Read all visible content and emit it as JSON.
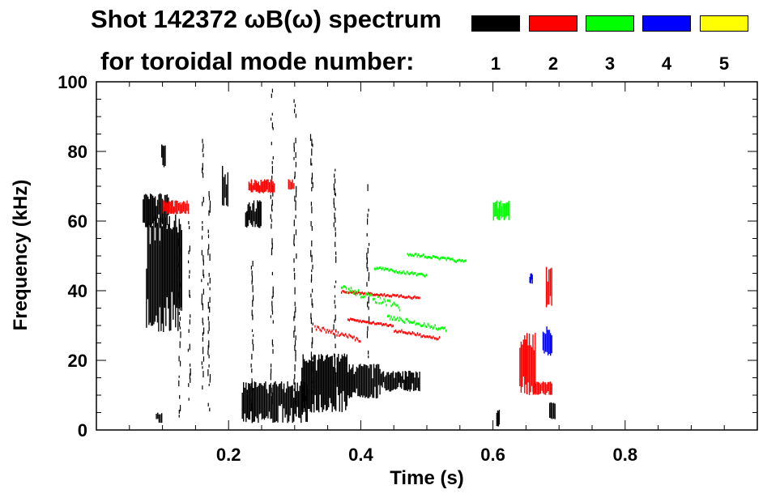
{
  "chart_data": {
    "type": "scatter",
    "title": "Shot 142372 ωB(ω) spectrum",
    "subtitle": "for toroidal mode number:",
    "xlabel": "Time (s)",
    "ylabel": "Frequency (kHz)",
    "xlim": [
      0.0,
      1.0
    ],
    "ylim": [
      0,
      100
    ],
    "xticks": [
      0.2,
      0.4,
      0.6,
      0.8
    ],
    "xtick_labels": [
      "0.2",
      "0.4",
      "0.6",
      "0.8"
    ],
    "yticks": [
      0,
      20,
      40,
      60,
      80,
      100
    ],
    "ytick_labels": [
      "0",
      "20",
      "40",
      "60",
      "80",
      "100"
    ],
    "legend": [
      {
        "label": "1",
        "color": "#000000"
      },
      {
        "label": "2",
        "color": "#ff0000"
      },
      {
        "label": "3",
        "color": "#00ff00"
      },
      {
        "label": "4",
        "color": "#0000ff"
      },
      {
        "label": "5",
        "color": "#ffff00"
      }
    ],
    "series": [
      {
        "name": "1",
        "color": "#000000",
        "blobs": [
          {
            "t": [
              0.075,
              0.13
            ],
            "f": [
              28,
              62
            ]
          },
          {
            "t": [
              0.07,
              0.11
            ],
            "f": [
              58,
              68
            ]
          },
          {
            "t": [
              0.098,
              0.105
            ],
            "f": [
              75,
              82
            ]
          },
          {
            "t": [
              0.19,
              0.2
            ],
            "f": [
              64,
              76
            ]
          },
          {
            "t": [
              0.225,
              0.25
            ],
            "f": [
              58,
              66
            ]
          },
          {
            "t": [
              0.22,
              0.32
            ],
            "f": [
              2,
              14
            ]
          },
          {
            "t": [
              0.31,
              0.38
            ],
            "f": [
              5,
              22
            ]
          },
          {
            "t": [
              0.38,
              0.43
            ],
            "f": [
              9,
              19
            ]
          },
          {
            "t": [
              0.43,
              0.49
            ],
            "f": [
              11,
              17
            ]
          },
          {
            "t": [
              0.605,
              0.61
            ],
            "f": [
              1,
              6
            ]
          },
          {
            "t": [
              0.685,
              0.695
            ],
            "f": [
              3,
              8
            ]
          },
          {
            "t": [
              0.09,
              0.1
            ],
            "f": [
              2,
              5
            ]
          }
        ],
        "streaks": [
          {
            "t": 0.16,
            "f": [
              10,
              85
            ]
          },
          {
            "t": 0.17,
            "f": [
              5,
              70
            ]
          },
          {
            "t": 0.235,
            "f": [
              5,
              50
            ]
          },
          {
            "t": 0.265,
            "f": [
              8,
              98
            ]
          },
          {
            "t": 0.3,
            "f": [
              5,
              95
            ]
          },
          {
            "t": 0.325,
            "f": [
              10,
              85
            ]
          },
          {
            "t": 0.36,
            "f": [
              15,
              75
            ]
          },
          {
            "t": 0.41,
            "f": [
              20,
              72
            ]
          },
          {
            "t": 0.14,
            "f": [
              5,
              60
            ]
          },
          {
            "t": 0.125,
            "f": [
              3,
              55
            ]
          }
        ]
      },
      {
        "name": "2",
        "color": "#ff0000",
        "blobs": [
          {
            "t": [
              0.64,
              0.665
            ],
            "f": [
              10,
              28
            ]
          },
          {
            "t": [
              0.66,
              0.69
            ],
            "f": [
              10,
              14
            ]
          },
          {
            "t": [
              0.68,
              0.69
            ],
            "f": [
              35,
              47
            ]
          },
          {
            "t": [
              0.1,
              0.14
            ],
            "f": [
              62,
              66
            ]
          },
          {
            "t": [
              0.23,
              0.27
            ],
            "f": [
              68,
              72
            ]
          },
          {
            "t": [
              0.29,
              0.3
            ],
            "f": [
              69,
              72
            ]
          }
        ],
        "streaks": [
          {
            "t": [
              0.37,
              0.49
            ],
            "f": [
              37,
              40
            ]
          },
          {
            "t": [
              0.38,
              0.45
            ],
            "f": [
              29,
              32
            ]
          },
          {
            "t": [
              0.45,
              0.52
            ],
            "f": [
              25,
              29
            ]
          },
          {
            "t": [
              0.33,
              0.4
            ],
            "f": [
              24,
              30
            ]
          }
        ]
      },
      {
        "name": "3",
        "color": "#00ff00",
        "blobs": [
          {
            "t": [
              0.6,
              0.625
            ],
            "f": [
              60,
              66
            ]
          }
        ],
        "streaks": [
          {
            "t": [
              0.47,
              0.56
            ],
            "f": [
              47,
              51
            ]
          },
          {
            "t": [
              0.37,
              0.46
            ],
            "f": [
              32,
              42
            ]
          },
          {
            "t": [
              0.44,
              0.53
            ],
            "f": [
              27,
              33
            ]
          },
          {
            "t": [
              0.42,
              0.5
            ],
            "f": [
              43,
              47
            ]
          }
        ]
      },
      {
        "name": "4",
        "color": "#0000ff",
        "blobs": [
          {
            "t": [
              0.655,
              0.66
            ],
            "f": [
              42,
              45
            ]
          },
          {
            "t": [
              0.675,
              0.69
            ],
            "f": [
              21,
              30
            ]
          }
        ]
      },
      {
        "name": "5",
        "color": "#ffff00",
        "blobs": []
      }
    ]
  }
}
